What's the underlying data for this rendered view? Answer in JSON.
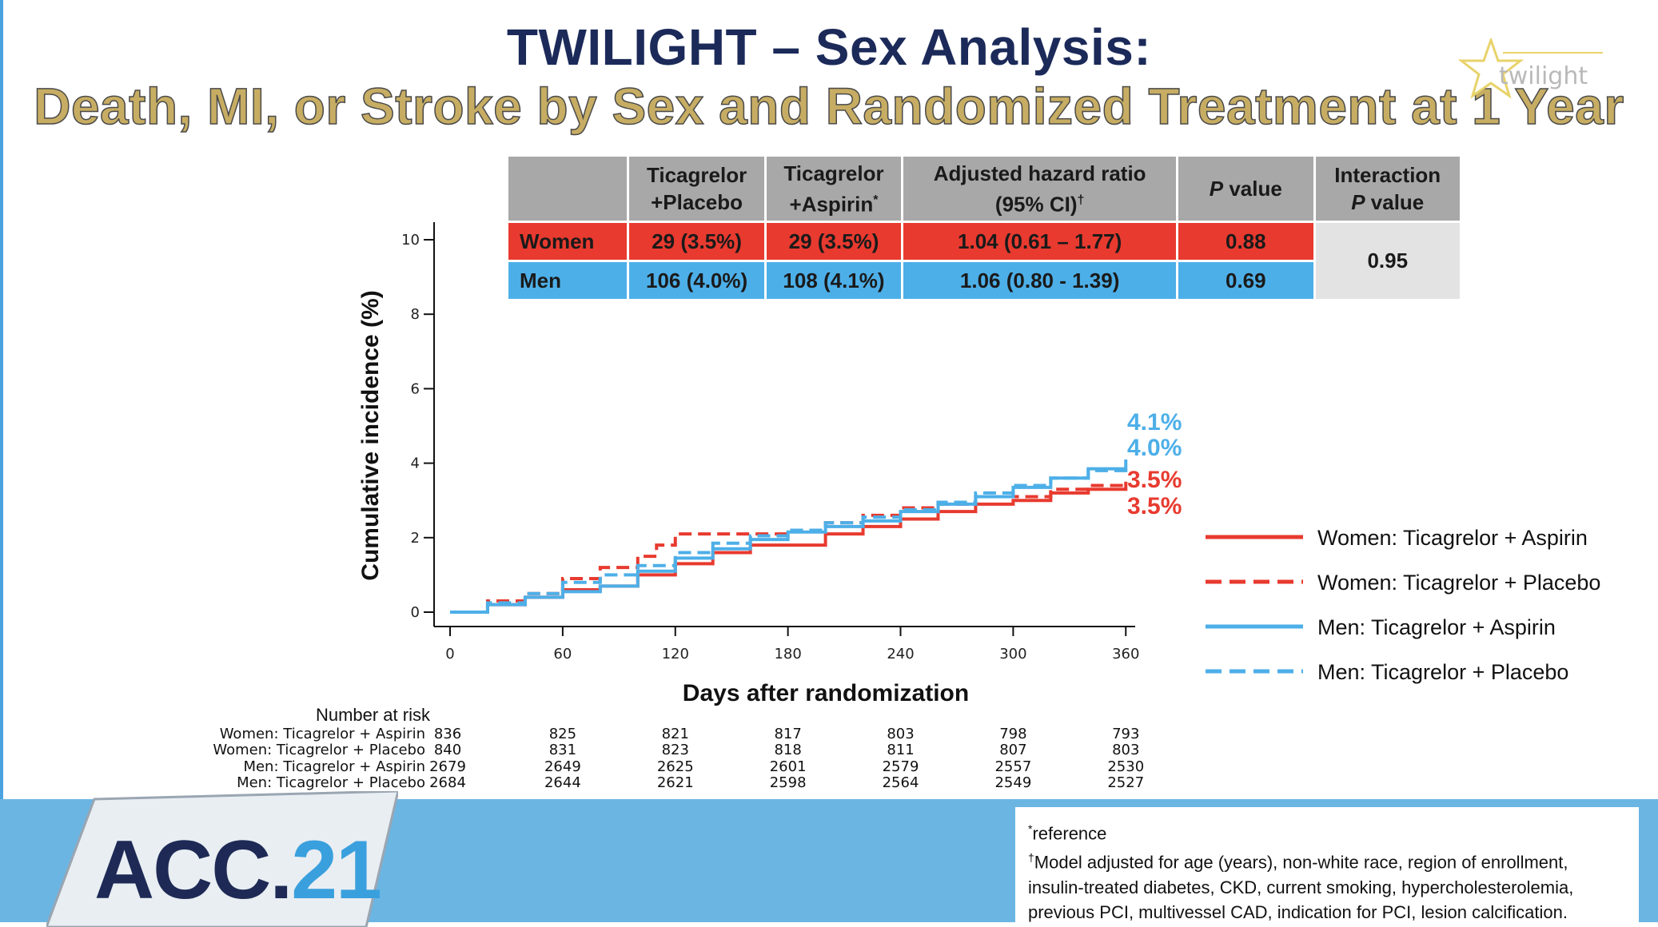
{
  "title_line1": "TWILIGHT – Sex Analysis:",
  "title_line2": "Death, MI, or Stroke by Sex and Randomized Treatment at 1 Year",
  "logo_text": "twilight",
  "table": {
    "headers": [
      "",
      "Ticagrelor +Placebo",
      "Ticagrelor +Aspirin*",
      "Adjusted hazard ratio (95% CI)†",
      "P value",
      "Interaction P value"
    ],
    "header_parts": {
      "tp_1": "Ticagrelor",
      "tp_2": "+Placebo",
      "ta_1": "Ticagrelor",
      "ta_2": "+Aspirin",
      "ta_sup": "*",
      "hr_1": "Adjusted hazard ratio",
      "hr_2": "(95% CI)",
      "hr_sup": "†",
      "pv_1": "P",
      "pv_2": " value",
      "ip_1": "Interaction",
      "ip_2": "P",
      "ip_3": " value"
    },
    "rows": [
      {
        "label": "Women",
        "tp": "29 (3.5%)",
        "ta": "29 (3.5%)",
        "hr": "1.04 (0.61 – 1.77)",
        "p": "0.88"
      },
      {
        "label": "Men",
        "tp": "106 (4.0%)",
        "ta": "108 (4.1%)",
        "hr": "1.06 (0.80 - 1.39)",
        "p": "0.69"
      }
    ],
    "interaction_p": "0.95"
  },
  "chart_data": {
    "type": "line",
    "xlabel": "Days after randomization",
    "ylabel": "Cumulative incidence (%)",
    "xlim": [
      0,
      365
    ],
    "ylim": [
      0,
      10
    ],
    "xticks": [
      0,
      60,
      120,
      180,
      240,
      300,
      360
    ],
    "yticks": [
      0,
      2,
      4,
      6,
      8,
      10
    ],
    "legend_position": "right",
    "series": [
      {
        "name": "Women: Ticagrelor + Aspirin",
        "color": "#e83a2f",
        "style": "solid",
        "x": [
          0,
          20,
          40,
          60,
          80,
          100,
          120,
          140,
          160,
          180,
          200,
          220,
          240,
          260,
          280,
          300,
          320,
          340,
          360
        ],
        "y": [
          0,
          0.2,
          0.4,
          0.6,
          0.7,
          1.0,
          1.3,
          1.6,
          1.8,
          1.8,
          2.1,
          2.3,
          2.5,
          2.7,
          2.9,
          3.0,
          3.2,
          3.3,
          3.5
        ]
      },
      {
        "name": "Women: Ticagrelor + Placebo",
        "color": "#e83a2f",
        "style": "dashed",
        "x": [
          0,
          20,
          40,
          60,
          80,
          100,
          110,
          120,
          140,
          160,
          180,
          200,
          220,
          240,
          260,
          280,
          300,
          320,
          340,
          360
        ],
        "y": [
          0,
          0.3,
          0.5,
          0.9,
          1.2,
          1.5,
          1.8,
          2.1,
          2.1,
          2.1,
          2.2,
          2.4,
          2.6,
          2.8,
          2.9,
          3.1,
          3.1,
          3.3,
          3.4,
          3.5
        ]
      },
      {
        "name": "Men: Ticagrelor + Aspirin",
        "color": "#4dafe8",
        "style": "solid",
        "x": [
          0,
          20,
          40,
          60,
          80,
          100,
          120,
          140,
          160,
          180,
          200,
          220,
          240,
          260,
          280,
          300,
          320,
          340,
          360
        ],
        "y": [
          0,
          0.2,
          0.4,
          0.55,
          0.7,
          1.1,
          1.45,
          1.7,
          1.95,
          2.15,
          2.3,
          2.45,
          2.7,
          2.9,
          3.1,
          3.35,
          3.6,
          3.85,
          4.1
        ]
      },
      {
        "name": "Men: Ticagrelor + Placebo",
        "color": "#4dafe8",
        "style": "dashed",
        "x": [
          0,
          20,
          40,
          60,
          80,
          100,
          120,
          140,
          160,
          180,
          200,
          220,
          240,
          260,
          280,
          300,
          320,
          340,
          360
        ],
        "y": [
          0,
          0.25,
          0.5,
          0.8,
          1.0,
          1.25,
          1.6,
          1.85,
          2.05,
          2.2,
          2.4,
          2.55,
          2.75,
          2.95,
          3.2,
          3.4,
          3.6,
          3.8,
          4.0
        ]
      }
    ],
    "end_labels": [
      {
        "text": "4.1%",
        "color": "#4dafe8",
        "y_value": 4.1
      },
      {
        "text": "4.0%",
        "color": "#4dafe8",
        "y_value": 4.0
      },
      {
        "text": "3.5%",
        "color": "#e83a2f",
        "y_value": 3.5
      },
      {
        "text": "3.5%",
        "color": "#e83a2f",
        "y_value": 3.5
      }
    ],
    "number_at_risk": {
      "title": "Number at risk",
      "rows": [
        {
          "label": "Women: Ticagrelor + Aspirin",
          "values": [
            "836",
            "825",
            "821",
            "817",
            "803",
            "798",
            "793"
          ]
        },
        {
          "label": "Women: Ticagrelor + Placebo",
          "values": [
            "840",
            "831",
            "823",
            "818",
            "811",
            "807",
            "803"
          ]
        },
        {
          "label": "Men: Ticagrelor + Aspirin",
          "values": [
            "2679",
            "2649",
            "2625",
            "2601",
            "2579",
            "2557",
            "2530"
          ]
        },
        {
          "label": "Men: Ticagrelor + Placebo",
          "values": [
            "2684",
            "2644",
            "2621",
            "2598",
            "2564",
            "2549",
            "2527"
          ]
        }
      ]
    }
  },
  "footnotes": {
    "ref_sup": "*",
    "ref_text": "reference",
    "model_sup": "†",
    "model_text": "Model adjusted for age (years), non-white race, region of enrollment, insulin-treated diabetes, CKD, current smoking, hypercholesterolemia, previous PCI, multivessel CAD, indication for PCI, lesion calcification."
  },
  "badge": {
    "text_main": "ACC.",
    "text_accent": "21"
  }
}
